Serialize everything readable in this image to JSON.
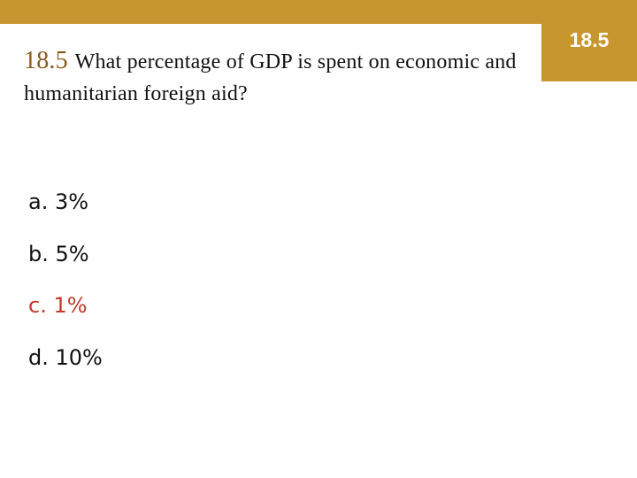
{
  "slide": {
    "section_badge": "18.5",
    "question_number": "18.5",
    "question_text": "What percentage of GDP is spent on economic and humanitarian foreign aid?",
    "answers": [
      {
        "label": "a. 3%"
      },
      {
        "label": "b. 5%"
      },
      {
        "label": "c. 1%"
      },
      {
        "label": "d. 10%"
      }
    ]
  },
  "colors": {
    "accent_bar": "#c8962e",
    "correct_answer": "#c0392b"
  }
}
